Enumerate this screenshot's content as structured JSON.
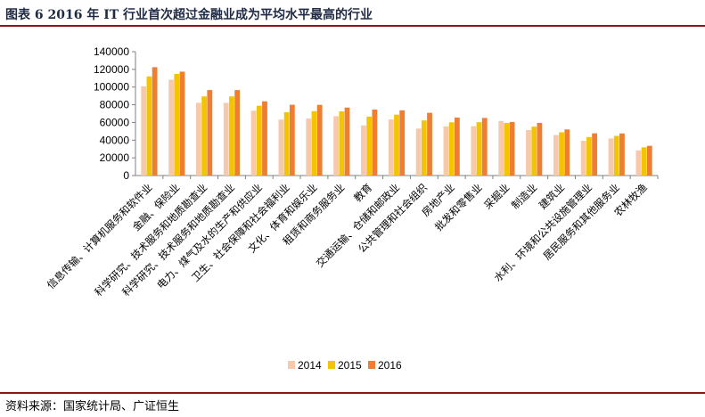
{
  "figure": {
    "title": "图表 6   2016 年 IT 行业首次超过金融业成为平均水平最高的行业",
    "source": "资料来源：国家统计局、广证恒生"
  },
  "chart_data": {
    "type": "bar",
    "title": "",
    "xlabel": "",
    "ylabel": "",
    "ylim": [
      0,
      140000
    ],
    "yticks": [
      0,
      20000,
      40000,
      60000,
      80000,
      100000,
      120000,
      140000
    ],
    "grid": false,
    "legend_position": "bottom",
    "categories": [
      "信息传输、计算机服务和软件业",
      "金融、保险业",
      "科学研究、技术服务和地质勘查业",
      "科学研究、技术服务和地质勘查业",
      "电力、煤气及水的生产和供应业",
      "卫生、社会保障和社会福利业",
      "文化、体育和娱乐业",
      "租赁和商务服务业",
      "教育",
      "交通运输、仓储和邮政业",
      "公共管理和社会组织",
      "房地产业",
      "批发和零售业",
      "采掘业",
      "制造业",
      "建筑业",
      "水利、环境和公共设施管理业",
      "居民服务和其他服务业",
      "农林牧渔"
    ],
    "series": [
      {
        "name": "2014",
        "color": "#f6c9ac",
        "values": [
          100800,
          108300,
          82200,
          82200,
          73300,
          63300,
          64400,
          67100,
          56600,
          63400,
          53100,
          55600,
          55800,
          61700,
          51400,
          45800,
          39200,
          41900,
          28400
        ]
      },
      {
        "name": "2015",
        "color": "#f5c400",
        "values": [
          112000,
          114800,
          89400,
          89400,
          78900,
          71600,
          72800,
          72500,
          66600,
          68800,
          62300,
          60200,
          60300,
          59400,
          55300,
          48900,
          43500,
          44800,
          31900
        ]
      },
      {
        "name": "2016",
        "color": "#ef7d32",
        "values": [
          122500,
          117400,
          96600,
          96600,
          83900,
          80000,
          79900,
          76800,
          74500,
          73700,
          70900,
          65500,
          65100,
          60500,
          59500,
          52100,
          47700,
          47600,
          33600
        ]
      }
    ]
  }
}
